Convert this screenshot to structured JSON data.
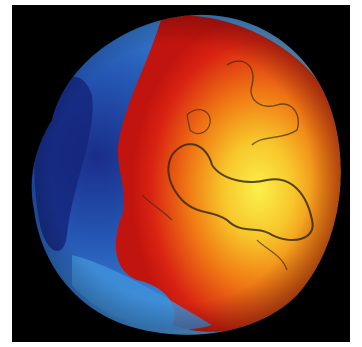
{
  "image": {
    "subject": "geoid-globe-render",
    "palette": {
      "background": "#000000",
      "frame": "#ffffff",
      "deep_blue": "#1a2d8a",
      "blue": "#2f72c8",
      "light_blue": "#5aa3e0",
      "red": "#d41d12",
      "orange": "#f07a14",
      "yellow": "#f7e531",
      "coastline": "#3a2a10"
    }
  }
}
